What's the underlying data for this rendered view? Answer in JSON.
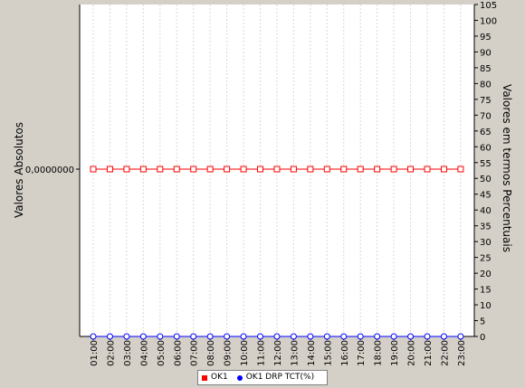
{
  "chart_data": {
    "type": "line",
    "title": "",
    "ylabel_left": "Valores Absolutos",
    "ylabel_right": "Valores em termos Percentuais",
    "left_ticks": [
      "0,0000000"
    ],
    "right_ylim": [
      0,
      105
    ],
    "right_ticks": [
      0,
      5,
      10,
      15,
      20,
      25,
      30,
      35,
      40,
      45,
      50,
      55,
      60,
      65,
      70,
      75,
      80,
      85,
      90,
      95,
      100,
      105
    ],
    "categories": [
      "01:00",
      "02:00",
      "03:00",
      "04:00",
      "05:00",
      "06:00",
      "07:00",
      "08:00",
      "09:00",
      "10:00",
      "11:00",
      "12:00",
      "13:00",
      "14:00",
      "15:00",
      "16:00",
      "17:00",
      "18:00",
      "19:00",
      "20:00",
      "21:00",
      "22:00",
      "23:00"
    ],
    "series": [
      {
        "name": "OK1",
        "axis": "left",
        "marker": "square",
        "color": "#ff0000",
        "values": [
          0,
          0,
          0,
          0,
          0,
          0,
          0,
          0,
          0,
          0,
          0,
          0,
          0,
          0,
          0,
          0,
          0,
          0,
          0,
          0,
          0,
          0,
          0
        ]
      },
      {
        "name": "OK1 DRP TCT(%)",
        "axis": "right",
        "marker": "circle",
        "color": "#0000ff",
        "values": [
          0,
          0,
          0,
          0,
          0,
          0,
          0,
          0,
          0,
          0,
          0,
          0,
          0,
          0,
          0,
          0,
          0,
          0,
          0,
          0,
          0,
          0,
          0
        ]
      }
    ],
    "grid": true,
    "legend_position": "bottom"
  }
}
